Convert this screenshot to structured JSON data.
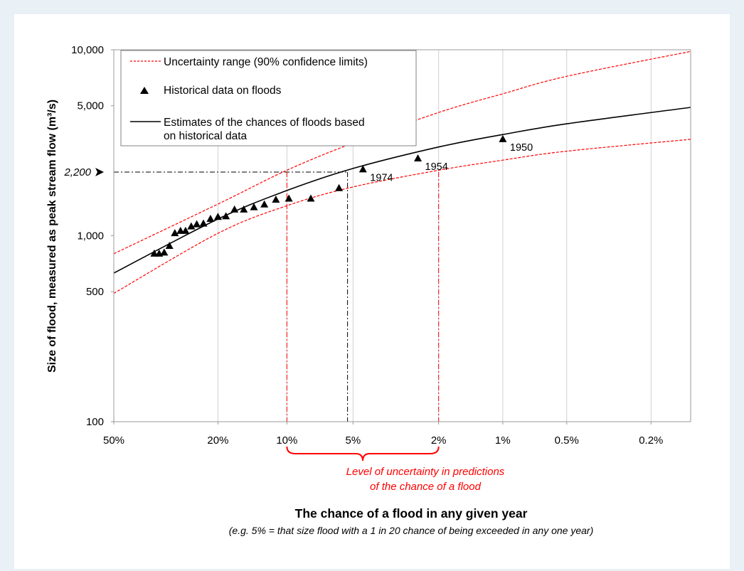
{
  "colors": {
    "page_background": "#e9f0f6",
    "panel_background": "#ffffff",
    "estimate_line": "#000000",
    "uncertainty_line": "#ff0000",
    "annotation_text": "#ff0000",
    "gridline": "#d0d0d0"
  },
  "chart_data": {
    "type": "line",
    "ylabel": "Size of flood, measured as peak stream flow (m³/s)",
    "xlabel": "The chance of a flood in any given year",
    "xlabel_note": "(e.g. 5% = that size flood with a 1 in 20 chance of being exceeded in any one year)",
    "x_scale": "probability (normal/Gumbel), decreasing to the right",
    "y_scale": "log",
    "ylim": [
      100,
      10000
    ],
    "xlim_percent": [
      50,
      0.13
    ],
    "grid": "vertical lines at x ticks",
    "legend_position": "top-left",
    "x_ticks": [
      {
        "value": 50,
        "label": "50%"
      },
      {
        "value": 20,
        "label": "20%"
      },
      {
        "value": 10,
        "label": "10%"
      },
      {
        "value": 5,
        "label": "5%"
      },
      {
        "value": 2,
        "label": "2%"
      },
      {
        "value": 1,
        "label": "1%"
      },
      {
        "value": 0.5,
        "label": "0.5%"
      },
      {
        "value": 0.2,
        "label": "0.2%"
      }
    ],
    "y_ticks": [
      {
        "value": 100,
        "label": "100"
      },
      {
        "value": 500,
        "label": "500"
      },
      {
        "value": 1000,
        "label": "1,000"
      },
      {
        "value": 5000,
        "label": "5,000"
      },
      {
        "value": 10000,
        "label": "10,000"
      }
    ],
    "series": [
      {
        "name": "Uncertainty range (90% confidence limits)",
        "style": "red-dashed",
        "curves": [
          {
            "x": [
              50,
              20,
              10,
              5,
              2,
              1,
              0.5,
              0.13
            ],
            "y": [
              800,
              1480,
              2250,
              3150,
              4600,
              5800,
              7200,
              9800
            ]
          },
          {
            "x": [
              50,
              20,
              10,
              5,
              2,
              1,
              0.5,
              0.13
            ],
            "y": [
              490,
              1030,
              1450,
              1830,
              2250,
              2550,
              2850,
              3300
            ]
          }
        ]
      },
      {
        "name": "Historical data on floods",
        "style": "black-triangles",
        "x": [
          36,
          34.5,
          33,
          31.5,
          30,
          28.5,
          27.2,
          25.8,
          24.5,
          23,
          21.5,
          20,
          18.5,
          17,
          15.5,
          14,
          12.6,
          11.2,
          9.8,
          7.8,
          5.8,
          4.5,
          2.5,
          1
        ],
        "y": [
          800,
          800,
          810,
          880,
          1030,
          1060,
          1060,
          1120,
          1150,
          1160,
          1230,
          1260,
          1270,
          1380,
          1380,
          1420,
          1470,
          1560,
          1580,
          1580,
          1800,
          2270,
          2600,
          3300
        ]
      },
      {
        "name": "Estimates of the chances of floods based on historical data",
        "style": "black-solid",
        "x": [
          50,
          20,
          10,
          5,
          2,
          1,
          0.5,
          0.13
        ],
        "y": [
          630,
          1230,
          1750,
          2300,
          3000,
          3500,
          4000,
          4900
        ]
      }
    ],
    "point_labels": [
      {
        "x": 4.5,
        "y": 2270,
        "text": "1974"
      },
      {
        "x": 2.5,
        "y": 2600,
        "text": "1954"
      },
      {
        "x": 1,
        "y": 3300,
        "text": "1950"
      }
    ],
    "reference": {
      "y_label": "2,200",
      "y": 2200,
      "x_estimate": 5.3,
      "x_limits": [
        10,
        2
      ]
    },
    "uncertainty_note_line1": "Level of uncertainty in predictions",
    "uncertainty_note_line2": "of the chance of a flood"
  }
}
